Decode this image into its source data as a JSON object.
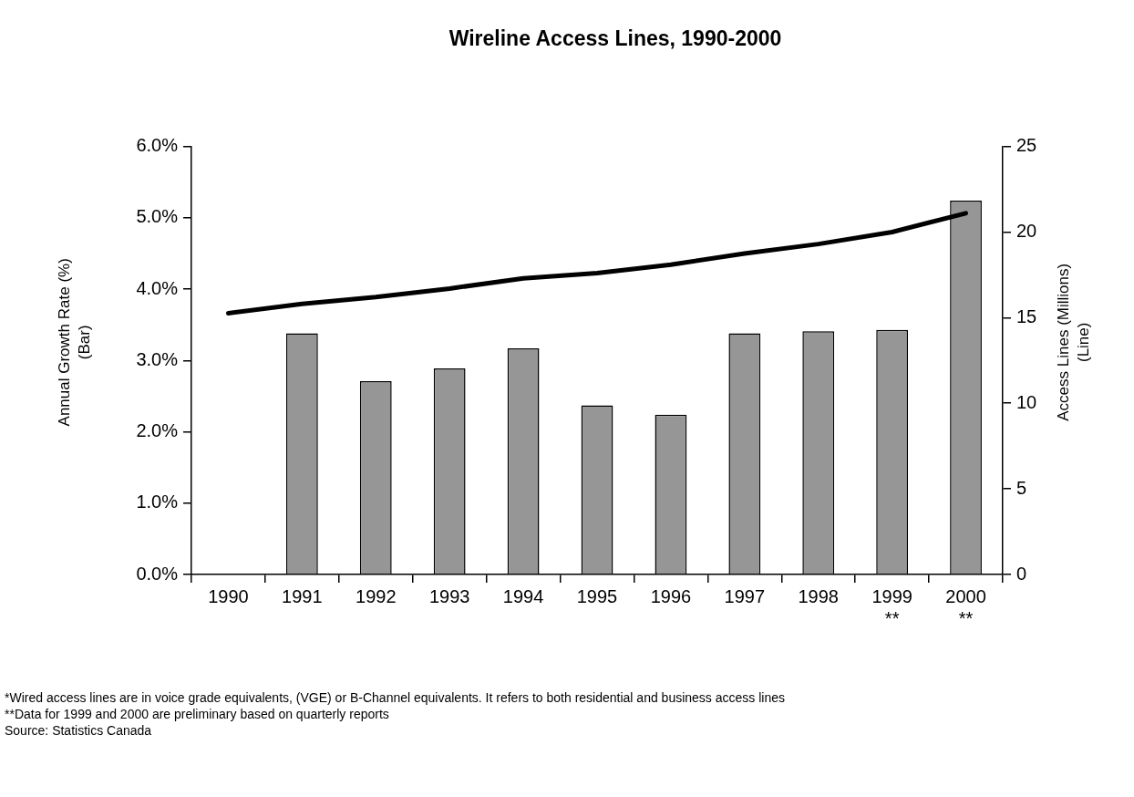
{
  "chart_data": {
    "type": "bar",
    "title": "Wireline Access Lines, 1990-2000",
    "ylabel": "Annual Growth Rate (%)\n(Bar)",
    "y2label": "Access Lines (Millions)\n(Line)",
    "categories": [
      "1990",
      "1991",
      "1992",
      "1993",
      "1994",
      "1995",
      "1996",
      "1997",
      "1998",
      "1999\n**",
      "2000\n**"
    ],
    "series": [
      {
        "color": "#969696",
        "values": [
          null,
          3.38,
          2.71,
          2.89,
          3.17,
          2.37,
          2.24,
          3.38,
          3.41,
          3.43,
          5.24
        ]
      },
      {
        "type": "line",
        "axis": "y2",
        "color": "#000000",
        "values": [
          15.26,
          15.8,
          16.2,
          16.7,
          17.3,
          17.6,
          18.1,
          18.75,
          19.3,
          20.0,
          21.1
        ]
      }
    ],
    "ylim": [
      0,
      6
    ],
    "yticks": [
      {
        "value": 0,
        "label": "0.0%"
      },
      {
        "value": 1,
        "label": "1.0%"
      },
      {
        "value": 2,
        "label": "2.0%"
      },
      {
        "value": 3,
        "label": "3.0%"
      },
      {
        "value": 4,
        "label": "4.0%"
      },
      {
        "value": 5,
        "label": "5.0%"
      },
      {
        "value": 6,
        "label": "6.0%"
      }
    ],
    "y2lim": [
      0,
      25
    ],
    "y2ticks": [
      0,
      5,
      10,
      15,
      20,
      25
    ],
    "grid": false,
    "legend": false,
    "marker": "none",
    "line_style": "solid",
    "annotations": [
      "*Wired access lines are in voice grade equivalents, (VGE) or B-Channel equivalents. It refers to both residential and business access lines",
      "**Data for 1999 and 2000 are preliminary based on quarterly reports",
      "Source: Statistics Canada"
    ]
  }
}
